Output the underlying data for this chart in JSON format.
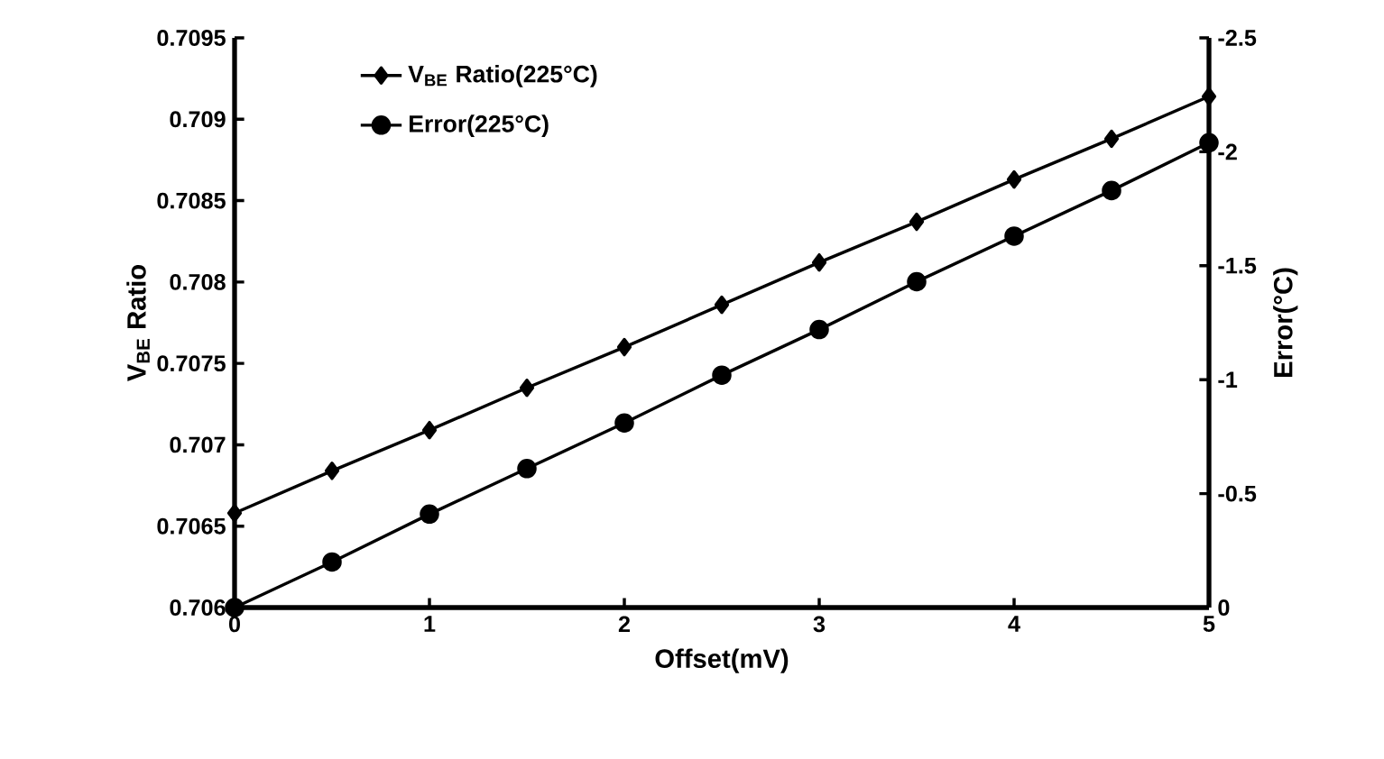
{
  "chart_data": {
    "type": "line",
    "xlabel": "Offset(mV)",
    "ylabel": "V$_{BE}$ Ratio",
    "y2label": "Error(°C)",
    "x": [
      0,
      0.5,
      1,
      1.5,
      2,
      2.5,
      3,
      3.5,
      4,
      4.5,
      5
    ],
    "series": [
      {
        "name": "V$_{BE}$ Ratio(225°C)",
        "color": "#000000",
        "marker": "diamond",
        "values": [
          0.70658,
          0.70684,
          0.70709,
          0.70735,
          0.7076,
          0.70786,
          0.70812,
          0.70837,
          0.70863,
          0.70888,
          0.70914
        ]
      },
      {
        "name": "Error(225°C)",
        "color": "#000000",
        "marker": "circle",
        "axis": "y2",
        "values": [
          0,
          -0.2,
          -0.41,
          -0.61,
          -0.81,
          -1.02,
          -1.22,
          -1.43,
          -1.63,
          -1.83,
          -2.04
        ]
      }
    ],
    "xlim": [
      0,
      5
    ],
    "xticks": [
      0,
      1,
      2,
      3,
      4,
      5
    ],
    "ylim": [
      0.706,
      0.7095
    ],
    "yticks": [
      0.706,
      0.7065,
      0.707,
      0.7075,
      0.708,
      0.7085,
      0.709,
      0.7095
    ],
    "y2lim": [
      0,
      -2.5
    ],
    "y2ticks": [
      0,
      -0.5,
      -1,
      -1.5,
      -2,
      -2.5
    ],
    "legend": "top left",
    "line_style": "solid",
    "grid": false
  }
}
